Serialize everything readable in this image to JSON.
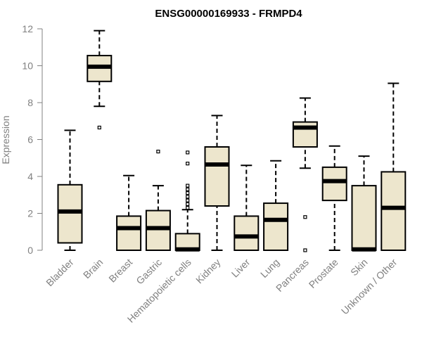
{
  "chart_data": {
    "type": "box",
    "title": "ENSG00000169933 - FRMPD4",
    "xlabel": "",
    "ylabel": "Expression",
    "ylim": [
      0,
      12
    ],
    "yticks": [
      "0",
      "2",
      "4",
      "6",
      "8",
      "10",
      "12"
    ],
    "grid": false,
    "colors": {
      "box_fill": "#ede6cd",
      "stroke": "#000000",
      "axis_text": "#808080"
    },
    "categories": [
      "Bladder",
      "Brain",
      "Breast",
      "Gastric",
      "Hematopoietic cells",
      "Kidney",
      "Liver",
      "Lung",
      "Pancreas",
      "Prostate",
      "Skin",
      "Unknown / Other"
    ],
    "boxes": [
      {
        "whisker_low": 0.0,
        "q1": 0.4,
        "median": 2.1,
        "q3": 3.55,
        "whisker_high": 6.5,
        "outliers": []
      },
      {
        "whisker_low": 7.8,
        "q1": 9.15,
        "median": 9.95,
        "q3": 10.55,
        "whisker_high": 11.9,
        "outliers": [
          6.65
        ]
      },
      {
        "whisker_low": 0.0,
        "q1": 0.0,
        "median": 1.2,
        "q3": 1.85,
        "whisker_high": 4.05,
        "outliers": []
      },
      {
        "whisker_low": 0.0,
        "q1": 0.0,
        "median": 1.2,
        "q3": 2.15,
        "whisker_high": 3.5,
        "outliers": [
          5.35
        ]
      },
      {
        "whisker_low": 0.0,
        "q1": 0.0,
        "median": 0.05,
        "q3": 0.9,
        "whisker_high": 2.2,
        "outliers": [
          2.3,
          2.5,
          2.7,
          2.9,
          3.1,
          3.3,
          3.5,
          4.7,
          5.3
        ]
      },
      {
        "whisker_low": 0.0,
        "q1": 2.4,
        "median": 4.65,
        "q3": 5.6,
        "whisker_high": 7.3,
        "outliers": []
      },
      {
        "whisker_low": 0.0,
        "q1": 0.0,
        "median": 0.75,
        "q3": 1.85,
        "whisker_high": 4.6,
        "outliers": []
      },
      {
        "whisker_low": 0.0,
        "q1": 0.0,
        "median": 1.65,
        "q3": 2.55,
        "whisker_high": 4.85,
        "outliers": []
      },
      {
        "whisker_low": 4.45,
        "q1": 5.6,
        "median": 6.65,
        "q3": 6.95,
        "whisker_high": 8.25,
        "outliers": [
          1.8,
          0.0
        ]
      },
      {
        "whisker_low": 0.0,
        "q1": 2.7,
        "median": 3.75,
        "q3": 4.5,
        "whisker_high": 5.65,
        "outliers": []
      },
      {
        "whisker_low": 0.0,
        "q1": 0.0,
        "median": 0.05,
        "q3": 3.5,
        "whisker_high": 5.1,
        "outliers": []
      },
      {
        "whisker_low": 0.0,
        "q1": 0.0,
        "median": 2.3,
        "q3": 4.25,
        "whisker_high": 9.05,
        "outliers": []
      }
    ]
  }
}
